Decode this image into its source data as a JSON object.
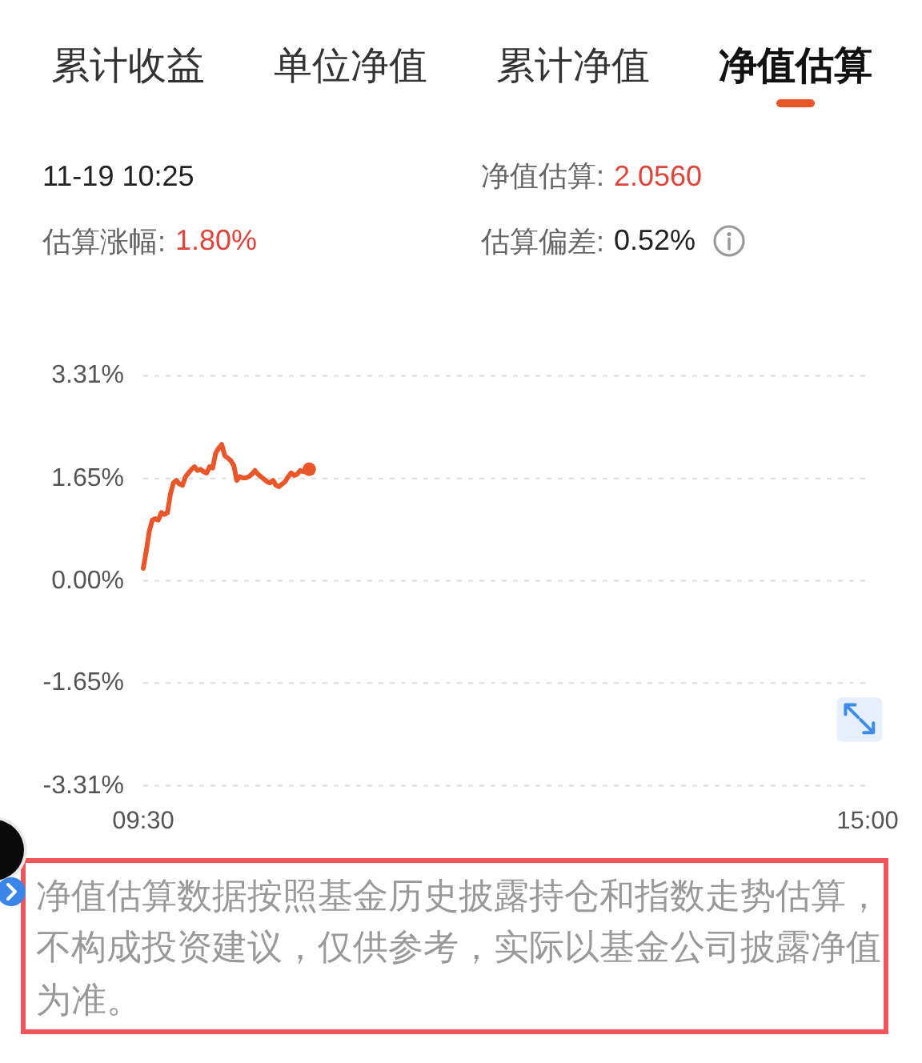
{
  "chart_data": [
    {
      "type": "other",
      "annotations": [
        "累计收益",
        "单位净值",
        "累计净值",
        "净值估算",
        "11-19 10:25",
        "净值估算:",
        "2.0560",
        "估算涨幅:",
        "1.80%",
        "估算偏差:",
        "0.52%"
      ]
    },
    {
      "type": "line",
      "categories": [
        "09:30",
        null,
        null,
        null,
        null,
        null,
        null,
        null,
        null,
        null,
        null,
        null,
        null,
        null,
        null,
        null,
        null,
        null,
        null,
        null,
        null,
        null,
        null,
        null,
        null,
        null,
        null,
        null,
        null,
        null,
        null,
        null,
        null,
        null,
        null,
        null,
        null,
        null,
        null,
        null,
        null,
        null,
        null,
        null,
        null,
        null,
        null,
        null,
        null,
        null,
        null,
        null,
        null,
        null,
        null,
        null,
        null,
        null,
        null,
        null,
        null,
        null,
        null,
        null,
        null,
        null,
        null,
        null,
        null,
        null,
        null,
        null,
        null,
        null,
        null,
        null,
        null,
        null,
        null,
        null,
        null,
        null,
        null,
        null,
        null,
        null,
        null,
        null,
        null,
        null,
        null,
        null,
        null,
        null,
        null,
        null,
        null,
        null,
        null,
        null,
        null,
        null,
        null,
        null,
        null,
        null,
        null,
        null,
        null,
        null,
        null,
        null,
        null,
        null,
        null,
        null,
        null,
        null,
        null,
        null,
        null,
        null,
        null,
        null,
        null,
        null,
        null,
        null,
        null,
        null,
        null,
        null,
        null,
        null,
        null,
        null,
        null,
        null,
        null,
        null,
        null,
        null,
        null,
        null,
        null,
        null,
        null,
        null,
        null,
        null,
        null,
        null,
        null,
        null,
        null,
        null,
        null,
        null,
        null,
        null,
        null,
        null,
        null,
        null,
        null,
        null,
        null,
        null,
        null,
        null,
        null,
        null,
        null,
        null,
        null,
        null,
        null,
        null,
        null,
        null,
        null,
        null,
        null,
        null,
        null,
        null,
        null,
        null,
        null,
        null,
        null,
        null,
        null,
        null,
        null,
        null,
        null,
        null,
        null,
        null,
        null,
        null,
        null,
        null,
        null,
        null,
        null,
        null,
        null,
        null,
        null,
        null,
        null,
        null,
        null,
        null,
        null,
        null,
        null,
        null,
        null,
        null,
        null,
        null,
        null,
        null,
        null,
        null,
        null,
        null,
        null,
        null,
        null,
        null,
        null,
        null,
        null,
        null,
        null,
        null,
        "15:00"
      ],
      "series": [
        {
          "color": "#e8562a",
          "values": [
            0.2,
            0.48,
            0.8,
            0.98,
            1.0,
            0.98,
            1.1,
            1.07,
            1.1,
            1.4,
            1.58,
            1.62,
            1.56,
            1.54,
            1.68,
            1.74,
            1.8,
            1.84,
            1.78,
            1.8,
            1.76,
            1.74,
            1.84,
            1.82,
            2.06,
            2.14,
            2.2,
            2.02,
            1.98,
            1.94,
            1.86,
            1.62,
            1.68,
            1.66,
            1.66,
            1.68,
            1.72,
            1.78,
            1.72,
            1.68,
            1.64,
            1.6,
            1.58,
            1.62,
            1.54,
            1.52,
            1.56,
            1.6,
            1.68,
            1.74,
            1.7,
            1.72,
            1.78,
            1.76,
            1.79,
            1.8,
            null,
            null,
            null,
            null,
            null,
            null,
            null,
            null,
            null,
            null,
            null,
            null,
            null,
            null,
            null,
            null,
            null,
            null,
            null,
            null,
            null,
            null,
            null,
            null,
            null,
            null,
            null,
            null,
            null,
            null,
            null,
            null,
            null,
            null,
            null,
            null,
            null,
            null,
            null,
            null,
            null,
            null,
            null,
            null,
            null,
            null,
            null,
            null,
            null,
            null,
            null,
            null,
            null,
            null,
            null,
            null,
            null,
            null,
            null,
            null,
            null,
            null,
            null,
            null,
            null,
            null,
            null,
            null,
            null,
            null,
            null,
            null,
            null,
            null,
            null,
            null,
            null,
            null,
            null,
            null,
            null,
            null,
            null,
            null,
            null,
            null,
            null,
            null,
            null,
            null,
            null,
            null,
            null,
            null,
            null,
            null,
            null,
            null,
            null,
            null,
            null,
            null,
            null,
            null,
            null,
            null,
            null,
            null,
            null,
            null,
            null,
            null,
            null,
            null,
            null,
            null,
            null,
            null,
            null,
            null,
            null,
            null,
            null,
            null,
            null,
            null,
            null,
            null,
            null,
            null,
            null,
            null,
            null,
            null,
            null,
            null,
            null,
            null,
            null,
            null,
            null,
            null,
            null,
            null,
            null,
            null,
            null,
            null,
            null,
            null,
            null,
            null,
            null,
            null,
            null,
            null,
            null,
            null,
            null,
            null,
            null,
            null,
            null,
            null,
            null,
            null,
            null,
            null,
            null,
            null,
            null,
            null,
            null,
            null,
            null,
            null,
            null,
            null,
            null,
            null,
            null,
            null,
            null,
            null,
            null
          ]
        },
        {
          "type": "scatter",
          "color": "#e8562a",
          "values": [
            null,
            null,
            null,
            null,
            null,
            null,
            null,
            null,
            null,
            null,
            null,
            null,
            null,
            null,
            null,
            null,
            null,
            null,
            null,
            null,
            null,
            null,
            null,
            null,
            null,
            null,
            null,
            null,
            null,
            null,
            null,
            null,
            null,
            null,
            null,
            null,
            null,
            null,
            null,
            null,
            null,
            null,
            null,
            null,
            null,
            null,
            null,
            null,
            null,
            null,
            null,
            null,
            null,
            null,
            null,
            1.8,
            null,
            null,
            null,
            null,
            null,
            null,
            null,
            null,
            null,
            null,
            null,
            null,
            null,
            null,
            null,
            null,
            null,
            null,
            null,
            null,
            null,
            null,
            null,
            null,
            null,
            null,
            null,
            null,
            null,
            null,
            null,
            null,
            null,
            null,
            null,
            null,
            null,
            null,
            null,
            null,
            null,
            null,
            null,
            null,
            null,
            null,
            null,
            null,
            null,
            null,
            null,
            null,
            null,
            null,
            null,
            null,
            null,
            null,
            null,
            null,
            null,
            null,
            null,
            null,
            null,
            null,
            null,
            null,
            null,
            null,
            null,
            null,
            null,
            null,
            null,
            null,
            null,
            null,
            null,
            null,
            null,
            null,
            null,
            null,
            null,
            null,
            null,
            null,
            null,
            null,
            null,
            null,
            null,
            null,
            null,
            null,
            null,
            null,
            null,
            null,
            null,
            null,
            null,
            null,
            null,
            null,
            null,
            null,
            null,
            null,
            null,
            null,
            null,
            null,
            null,
            null,
            null,
            null,
            null,
            null,
            null,
            null,
            null,
            null,
            null,
            null,
            null,
            null,
            null,
            null,
            null,
            null,
            null,
            null,
            null,
            null,
            null,
            null,
            null,
            null,
            null,
            null,
            null,
            null,
            null,
            null,
            null,
            null,
            null,
            null,
            null,
            null,
            null,
            null,
            null,
            null,
            null,
            null,
            null,
            null,
            null,
            null,
            null,
            null,
            null,
            null,
            null,
            null,
            null,
            null,
            null,
            null,
            null,
            null,
            null,
            null,
            null,
            null,
            null,
            null,
            null,
            null,
            null,
            null,
            null
          ]
        }
      ],
      "ylim": [
        -3.31,
        3.31
      ],
      "yticks": [
        {
          "value": 3.31,
          "label": "3.31%"
        },
        {
          "value": 1.65,
          "label": "1.65%"
        },
        {
          "value": 0,
          "label": "0.00%"
        },
        {
          "value": -1.65,
          "label": "-1.65%"
        },
        {
          "value": -3.31,
          "label": "-3.31%"
        }
      ],
      "grid": "y",
      "annotations": [
        "净值估算数据按照基金历史披露持仓和指数走势估算，不构成投资建议，仅供参考，实际以基金公司披露净值为准。"
      ]
    }
  ]
}
